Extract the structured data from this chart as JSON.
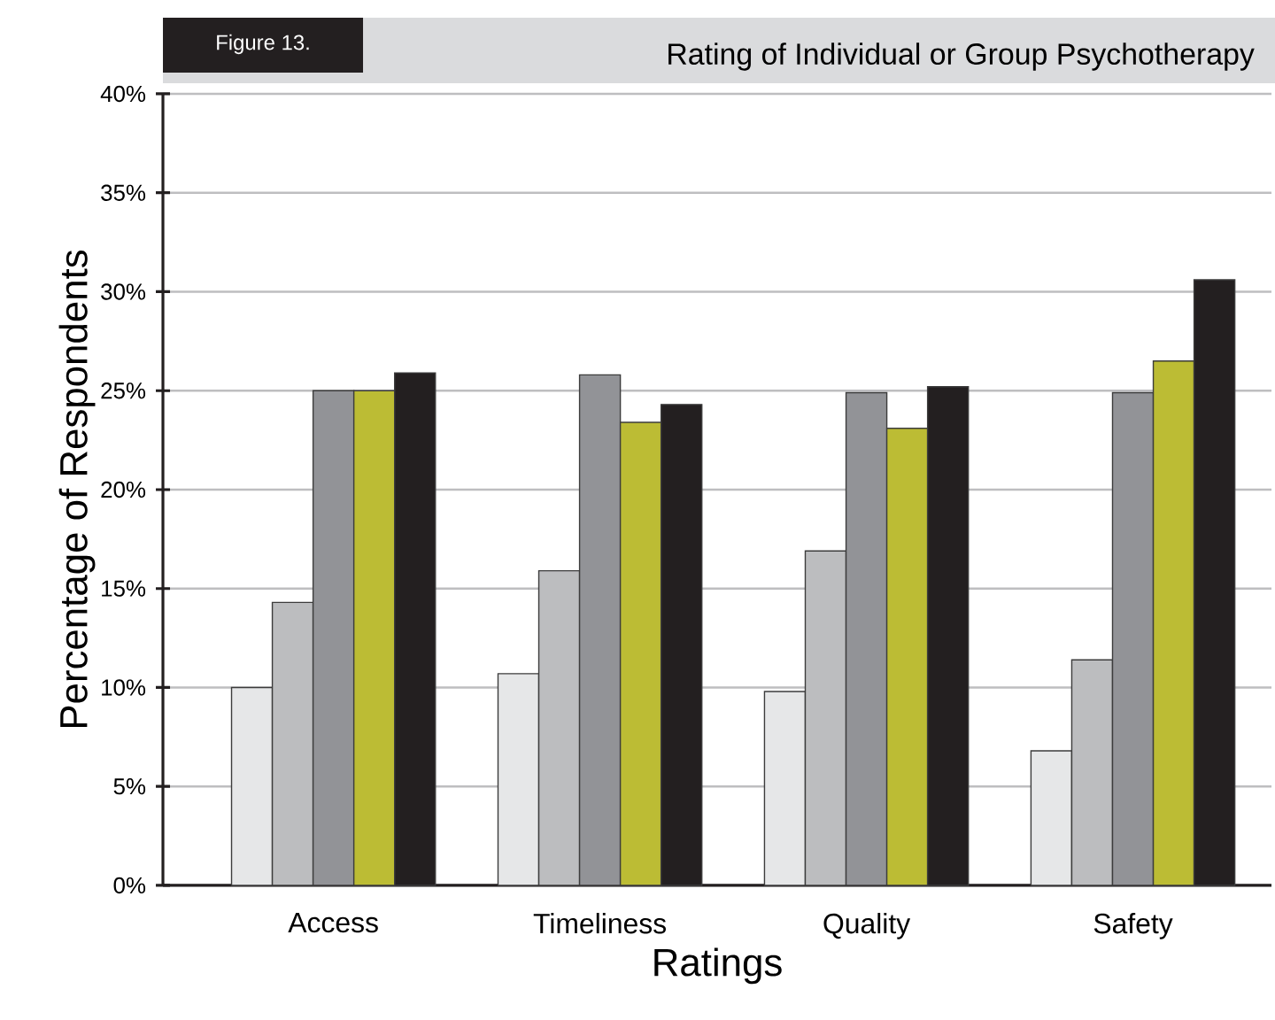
{
  "chart_data": {
    "type": "bar",
    "title": "Rating of Individual or Group Psychotherapy",
    "annotations": [
      "Figure 13."
    ],
    "xlabel": "Ratings",
    "ylabel": "Percentage of Respondents",
    "categories": [
      "Access",
      "Timeliness",
      "Quality",
      "Safety"
    ],
    "series": [
      {
        "color": "#e6e7e8",
        "values": [
          10.0,
          10.7,
          9.8,
          6.8
        ]
      },
      {
        "color": "#bcbdbf",
        "values": [
          14.3,
          15.9,
          16.9,
          11.4
        ]
      },
      {
        "color": "#929397",
        "values": [
          25.0,
          25.8,
          24.9,
          24.9
        ]
      },
      {
        "color": "#bcbc34",
        "values": [
          25.0,
          23.4,
          23.1,
          26.5
        ]
      },
      {
        "color": "#231f20",
        "values": [
          25.9,
          24.3,
          25.2,
          30.6
        ]
      }
    ],
    "ylim": [
      0,
      40
    ],
    "yticks": [
      {
        "value": 0,
        "label": "0%"
      },
      {
        "value": 5,
        "label": "5%"
      },
      {
        "value": 10,
        "label": "10%"
      },
      {
        "value": 15,
        "label": "15%"
      },
      {
        "value": 20,
        "label": "20%"
      },
      {
        "value": 25,
        "label": "25%"
      },
      {
        "value": 30,
        "label": "30%"
      },
      {
        "value": 35,
        "label": "35%"
      },
      {
        "value": 40,
        "label": "40%"
      }
    ],
    "grid": "y"
  }
}
